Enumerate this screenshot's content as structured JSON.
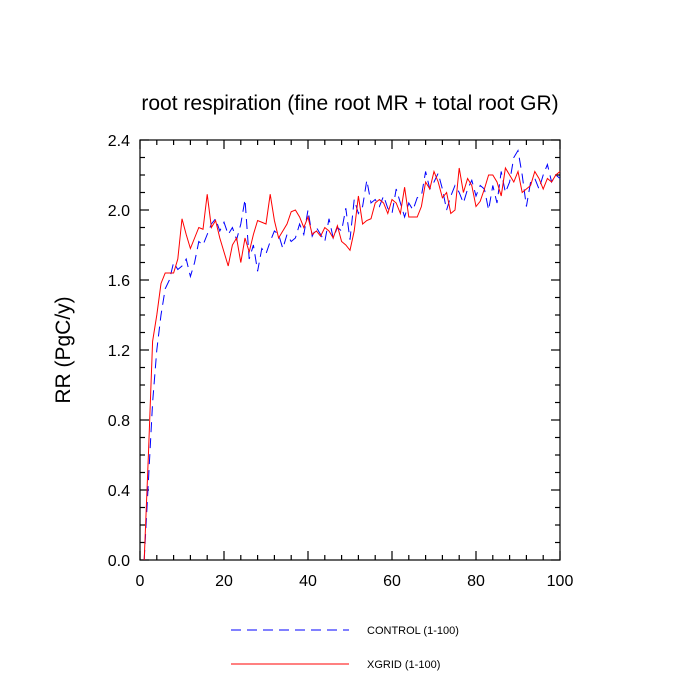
{
  "chart_data": {
    "type": "line",
    "title": "root respiration (fine root MR + total root GR)",
    "xlabel": "",
    "ylabel": "RR  (PgC/y)",
    "xlim": [
      0,
      100
    ],
    "ylim": [
      0,
      2.4
    ],
    "x_ticks": [
      "0",
      "20",
      "40",
      "60",
      "80",
      "100"
    ],
    "y_ticks": [
      "0.0",
      "0.4",
      "0.8",
      "1.2",
      "1.6",
      "2.0",
      "2.4"
    ],
    "grid": false,
    "legend_position": "bottom",
    "series": [
      {
        "name": "CONTROL (1-100)",
        "color": "#0000ff",
        "style": "dashed",
        "x": [
          1,
          2,
          3,
          4,
          5,
          6,
          7,
          8,
          9,
          10,
          11,
          12,
          13,
          14,
          15,
          16,
          17,
          18,
          19,
          20,
          21,
          22,
          23,
          24,
          25,
          26,
          27,
          28,
          29,
          30,
          31,
          32,
          33,
          34,
          35,
          36,
          37,
          38,
          39,
          40,
          41,
          42,
          43,
          44,
          45,
          46,
          47,
          48,
          49,
          50,
          51,
          52,
          53,
          54,
          55,
          56,
          57,
          58,
          59,
          60,
          61,
          62,
          63,
          64,
          65,
          66,
          67,
          68,
          69,
          70,
          71,
          72,
          73,
          74,
          75,
          76,
          77,
          78,
          79,
          80,
          81,
          82,
          83,
          84,
          85,
          86,
          87,
          88,
          89,
          90,
          91,
          92,
          93,
          94,
          95,
          96,
          97,
          98,
          99,
          100
        ],
        "values": [
          0.0,
          0.45,
          0.9,
          1.2,
          1.4,
          1.55,
          1.6,
          1.7,
          1.66,
          1.68,
          1.72,
          1.62,
          1.7,
          1.82,
          1.8,
          1.86,
          1.92,
          1.95,
          1.88,
          1.93,
          1.86,
          1.9,
          1.83,
          1.92,
          2.06,
          1.72,
          1.8,
          1.65,
          1.78,
          1.75,
          1.82,
          1.88,
          1.86,
          1.78,
          1.86,
          1.82,
          1.84,
          1.92,
          1.86,
          2.0,
          1.85,
          1.9,
          1.86,
          1.82,
          1.95,
          1.84,
          1.9,
          1.88,
          2.01,
          1.83,
          2.06,
          1.98,
          2.02,
          2.17,
          2.04,
          2.06,
          2.02,
          2.08,
          2.01,
          1.98,
          2.12,
          2.04,
          1.96,
          2.04,
          2.0,
          2.07,
          2.08,
          2.22,
          2.12,
          2.16,
          2.21,
          2.12,
          2.0,
          2.08,
          2.14,
          2.1,
          2.04,
          2.12,
          2.17,
          2.08,
          2.14,
          2.12,
          2.0,
          2.14,
          2.04,
          2.22,
          2.1,
          2.16,
          2.3,
          2.34,
          2.2,
          2.02,
          2.16,
          2.18,
          2.12,
          2.2,
          2.26,
          2.16,
          2.2,
          2.18
        ]
      },
      {
        "name": "XGRID (1-100)",
        "color": "#ff0000",
        "style": "solid",
        "x": [
          1,
          2,
          3,
          4,
          5,
          6,
          7,
          8,
          9,
          10,
          11,
          12,
          13,
          14,
          15,
          16,
          17,
          18,
          19,
          20,
          21,
          22,
          23,
          24,
          25,
          26,
          27,
          28,
          29,
          30,
          31,
          32,
          33,
          34,
          35,
          36,
          37,
          38,
          39,
          40,
          41,
          42,
          43,
          44,
          45,
          46,
          47,
          48,
          49,
          50,
          51,
          52,
          53,
          54,
          55,
          56,
          57,
          58,
          59,
          60,
          61,
          62,
          63,
          64,
          65,
          66,
          67,
          68,
          69,
          70,
          71,
          72,
          73,
          74,
          75,
          76,
          77,
          78,
          79,
          80,
          81,
          82,
          83,
          84,
          85,
          86,
          87,
          88,
          89,
          90,
          91,
          92,
          93,
          94,
          95,
          96,
          97,
          98,
          99,
          100
        ],
        "values": [
          0.0,
          0.6,
          1.25,
          1.4,
          1.58,
          1.64,
          1.64,
          1.64,
          1.72,
          1.95,
          1.86,
          1.78,
          1.84,
          1.9,
          1.89,
          2.09,
          1.9,
          1.94,
          1.84,
          1.76,
          1.68,
          1.8,
          1.84,
          1.7,
          1.84,
          1.76,
          1.86,
          1.94,
          1.93,
          1.92,
          2.09,
          1.94,
          1.84,
          1.88,
          1.92,
          1.99,
          2.0,
          1.96,
          1.9,
          1.96,
          1.86,
          1.88,
          1.85,
          1.9,
          1.88,
          1.84,
          1.91,
          1.82,
          1.8,
          1.77,
          1.88,
          2.08,
          1.92,
          1.94,
          1.95,
          2.04,
          2.06,
          2.04,
          1.98,
          2.06,
          2.04,
          1.98,
          2.13,
          1.96,
          1.96,
          1.96,
          2.02,
          2.16,
          2.12,
          2.22,
          2.16,
          2.07,
          2.1,
          1.98,
          2.0,
          2.24,
          2.1,
          2.18,
          2.14,
          2.02,
          2.05,
          2.12,
          2.2,
          2.2,
          2.16,
          2.08,
          2.24,
          2.2,
          2.16,
          2.22,
          2.1,
          2.12,
          2.14,
          2.22,
          2.18,
          2.12,
          2.18,
          2.16,
          2.2,
          2.22
        ]
      }
    ]
  }
}
